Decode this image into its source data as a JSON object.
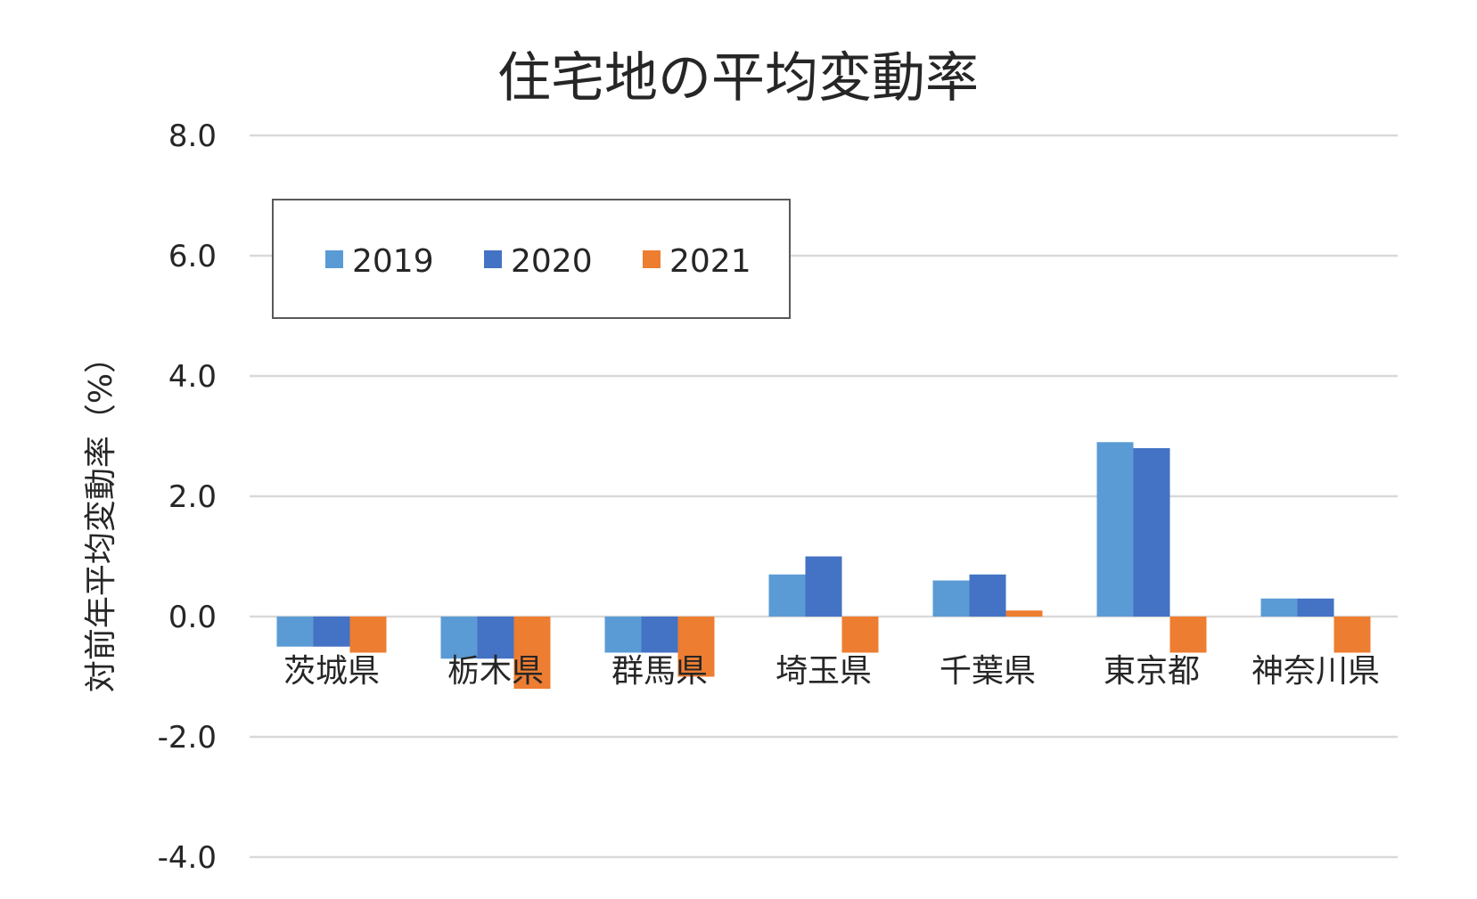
{
  "chart_data": {
    "type": "bar",
    "title": "住宅地の平均変動率",
    "xlabel": "",
    "ylabel": "対前年平均変動率（%）",
    "ylim": [
      -4.0,
      8.0
    ],
    "yticks": [
      "8.0",
      "6.0",
      "4.0",
      "2.0",
      "0.0",
      "-2.0",
      "-4.0"
    ],
    "ytick_values": [
      8,
      6,
      4,
      2,
      0,
      -2,
      -4
    ],
    "categories": [
      "茨城県",
      "栃木県",
      "群馬県",
      "埼玉県",
      "千葉県",
      "東京都",
      "神奈川県"
    ],
    "series": [
      {
        "name": "2019",
        "color": "#5b9bd5",
        "values": [
          -0.5,
          -0.7,
          -0.6,
          0.7,
          0.6,
          2.9,
          0.3
        ]
      },
      {
        "name": "2020",
        "color": "#4472c4",
        "values": [
          -0.5,
          -0.7,
          -0.6,
          1.0,
          0.7,
          2.8,
          0.3
        ]
      },
      {
        "name": "2021",
        "color": "#ed7d31",
        "values": [
          -0.6,
          -1.2,
          -1.0,
          -0.6,
          0.1,
          -0.6,
          -0.6
        ]
      }
    ],
    "legend": "top-left, boxed",
    "grid": true
  }
}
